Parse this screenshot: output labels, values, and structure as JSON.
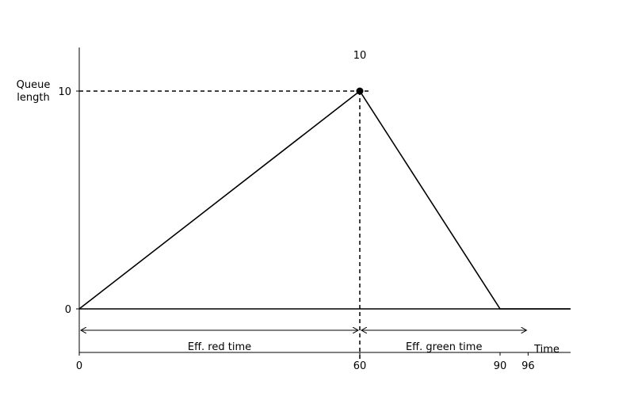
{
  "chart_data": {
    "type": "line",
    "ylabel_line1": "Queue",
    "ylabel_line2": "length",
    "xlabel": "Time",
    "series": [
      {
        "x": [
          0,
          60,
          90,
          105
        ],
        "y": [
          0,
          10,
          0,
          0
        ]
      }
    ],
    "peak_point": {
      "x": 60,
      "y": 10
    },
    "peak_label": "10",
    "reference_lines": {
      "horizontal_y": 10,
      "vertical_x": 60
    },
    "spans": [
      {
        "label": "Eff. red time",
        "from": 0,
        "to": 60
      },
      {
        "label": "Eff. green time",
        "from": 60,
        "to": 96
      }
    ],
    "x_ticks": [
      0,
      60,
      90,
      96
    ],
    "y_ticks": [
      0,
      10
    ],
    "xlim": [
      0,
      105
    ],
    "ylim": [
      -2,
      12
    ],
    "grid": false
  }
}
